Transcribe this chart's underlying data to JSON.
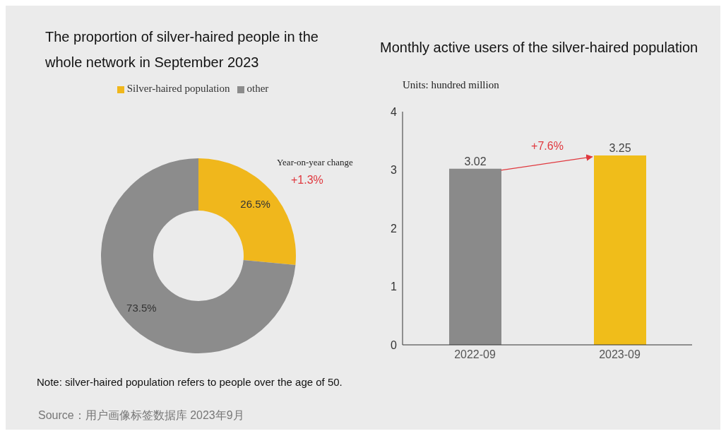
{
  "chart_data": [
    {
      "type": "donut",
      "title": "The proportion of silver-haired people in the whole network in September 2023",
      "categories": [
        "Silver-haired population",
        "other"
      ],
      "values": [
        26.5,
        73.5
      ],
      "colors": [
        "#f0b71c",
        "#8c8c8c"
      ],
      "value_labels": [
        "26.5%",
        "73.5%"
      ],
      "legend": "top",
      "annotations": [
        "Year-on-year change",
        "+1.3%",
        "Note: silver-haired population refers to people over the age of 50.",
        "Source：用户画像标签数据库 2023年9月"
      ]
    },
    {
      "type": "bar",
      "title": "Monthly active users of the silver-haired population",
      "ylabel": "Units: hundred million",
      "categories": [
        "2022-09",
        "2023-09"
      ],
      "values": [
        3.02,
        3.25
      ],
      "colors": [
        "#8a8a8a",
        "#f0bd1a"
      ],
      "ylim": [
        0,
        4
      ],
      "yticks": [
        0,
        1,
        2,
        3,
        4
      ],
      "data_labels": true,
      "annotations": [
        "+7.6%"
      ]
    }
  ]
}
